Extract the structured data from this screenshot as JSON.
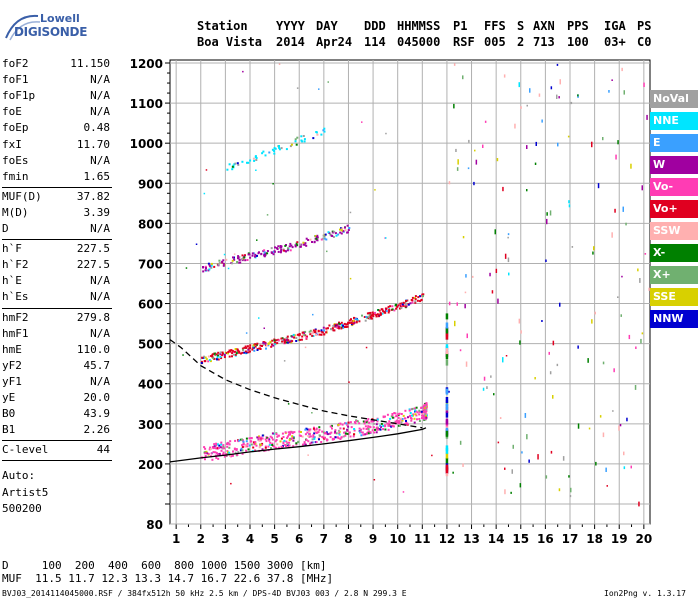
{
  "logo": {
    "line1": "Lowell",
    "line2": "DIGISONDE"
  },
  "header": {
    "labels": [
      "Station",
      "YYYY",
      "DAY",
      "DDD",
      "HHMMSS",
      "P1",
      "FFS",
      "S",
      "AXN",
      "PPS",
      "IGA",
      "PS"
    ],
    "values": [
      "Boa Vista",
      "2014",
      "Apr24",
      "114",
      "045000",
      "RSF",
      "005",
      "2",
      "713",
      "100",
      "03+",
      "C0"
    ]
  },
  "params": {
    "group1": [
      {
        "label": "foF2",
        "value": "11.150"
      },
      {
        "label": "foF1",
        "value": "N/A"
      },
      {
        "label": "foF1p",
        "value": "N/A"
      },
      {
        "label": "foE",
        "value": "N/A"
      },
      {
        "label": "foEp",
        "value": "0.48"
      },
      {
        "label": "fxI",
        "value": "11.70"
      },
      {
        "label": "foEs",
        "value": "N/A"
      },
      {
        "label": "fmin",
        "value": "1.65"
      }
    ],
    "group2": [
      {
        "label": "MUF(D)",
        "value": "37.82"
      },
      {
        "label": "M(D)",
        "value": "3.39"
      },
      {
        "label": "D",
        "value": "N/A"
      }
    ],
    "group3": [
      {
        "label": "h`F",
        "value": "227.5"
      },
      {
        "label": "h`F2",
        "value": "227.5"
      },
      {
        "label": "h`E",
        "value": "N/A"
      },
      {
        "label": "h`Es",
        "value": "N/A"
      }
    ],
    "group4": [
      {
        "label": "hmF2",
        "value": "279.8"
      },
      {
        "label": "hmF1",
        "value": "N/A"
      },
      {
        "label": "hmE",
        "value": "110.0"
      },
      {
        "label": "yF2",
        "value": "45.7"
      },
      {
        "label": "yF1",
        "value": "N/A"
      },
      {
        "label": "yE",
        "value": "20.0"
      },
      {
        "label": "B0",
        "value": "43.9"
      },
      {
        "label": "B1",
        "value": "2.26"
      }
    ],
    "group5": [
      {
        "label": "C-level",
        "value": "44"
      }
    ],
    "auto_lines": [
      "Auto:",
      "Artist5",
      "500200"
    ]
  },
  "legend": [
    {
      "label": "NoVal",
      "color": "#a0a0a0"
    },
    {
      "label": "NNE",
      "color": "#00e5ff"
    },
    {
      "label": "E",
      "color": "#3aa0ff"
    },
    {
      "label": "W",
      "color": "#a000a0"
    },
    {
      "label": "Vo-",
      "color": "#ff3cb4"
    },
    {
      "label": "Vo+",
      "color": "#e00020"
    },
    {
      "label": "SSW",
      "color": "#ffb0b0"
    },
    {
      "label": "X-",
      "color": "#008000"
    },
    {
      "label": "X+",
      "color": "#70b070"
    },
    {
      "label": "SSE",
      "color": "#d8d000"
    },
    {
      "label": "NNW",
      "color": "#0000d0"
    }
  ],
  "bottom": {
    "d_row": "D     100  200  400  600  800 1000 1500 3000 [km]",
    "muf_row": "MUF  11.5 11.7 12.3 13.3 14.7 16.7 22.6 37.8 [MHz]",
    "footer_left": "BVJ03_2014114045000.RSF / 384fx512h 50 kHz 2.5 km / DPS-4D BVJ03 003 / 2.8 N 299.3 E",
    "footer_right": "Ion2Png v. 1.3.17"
  },
  "chart_data": {
    "type": "scatter",
    "title": "",
    "xlabel": "",
    "ylabel": "",
    "xlim": [
      0.75,
      20.25
    ],
    "ylim": [
      80,
      1200
    ],
    "x_ticks": [
      1,
      2,
      3,
      4,
      5,
      6,
      7,
      8,
      9,
      10,
      11,
      12,
      13,
      14,
      15,
      16,
      17,
      18,
      19,
      20
    ],
    "y_ticks": [
      80,
      100,
      200,
      300,
      400,
      500,
      600,
      700,
      800,
      900,
      1000,
      1100,
      1200
    ],
    "y_tick_labels": [
      "80",
      "",
      "200",
      "300",
      "400",
      "500",
      "600",
      "700",
      "800",
      "900",
      "1000",
      "1100",
      "1200"
    ],
    "grid": true,
    "legend_position": "right",
    "series": [
      {
        "name": "Vo-",
        "color": "#ff3cb4",
        "x": [
          2,
          3,
          4,
          5,
          6,
          7,
          8,
          9,
          10,
          11,
          11.15
        ],
        "y": [
          228,
          238,
          248,
          260,
          268,
          278,
          288,
          300,
          312,
          330,
          335
        ]
      },
      {
        "name": "Vo+",
        "color": "#e00020",
        "x": [
          2,
          3,
          4,
          5,
          6,
          7,
          8,
          9,
          10,
          11
        ],
        "y": [
          462,
          475,
          490,
          505,
          520,
          535,
          555,
          575,
          595,
          620
        ]
      },
      {
        "name": "W",
        "color": "#a000a0",
        "x": [
          2,
          3,
          4,
          5,
          6,
          7,
          8
        ],
        "y": [
          690,
          705,
          720,
          735,
          750,
          770,
          790
        ]
      },
      {
        "name": "NNE",
        "color": "#00e5ff",
        "x": [
          3,
          4,
          5,
          6,
          7
        ],
        "y": [
          940,
          960,
          985,
          1010,
          1035
        ]
      }
    ],
    "profile_solid": {
      "x": [
        0.75,
        2,
        3,
        4,
        5,
        6,
        7,
        8,
        9,
        10,
        11,
        11.15
      ],
      "y": [
        205,
        215,
        222,
        230,
        237,
        243,
        250,
        258,
        266,
        275,
        286,
        290
      ]
    },
    "profile_dashed": {
      "x": [
        0.75,
        1.2,
        2,
        3,
        4,
        5,
        6,
        7,
        8,
        9,
        10,
        11
      ],
      "y": [
        510,
        490,
        445,
        410,
        385,
        365,
        348,
        332,
        320,
        310,
        300,
        290
      ]
    }
  }
}
